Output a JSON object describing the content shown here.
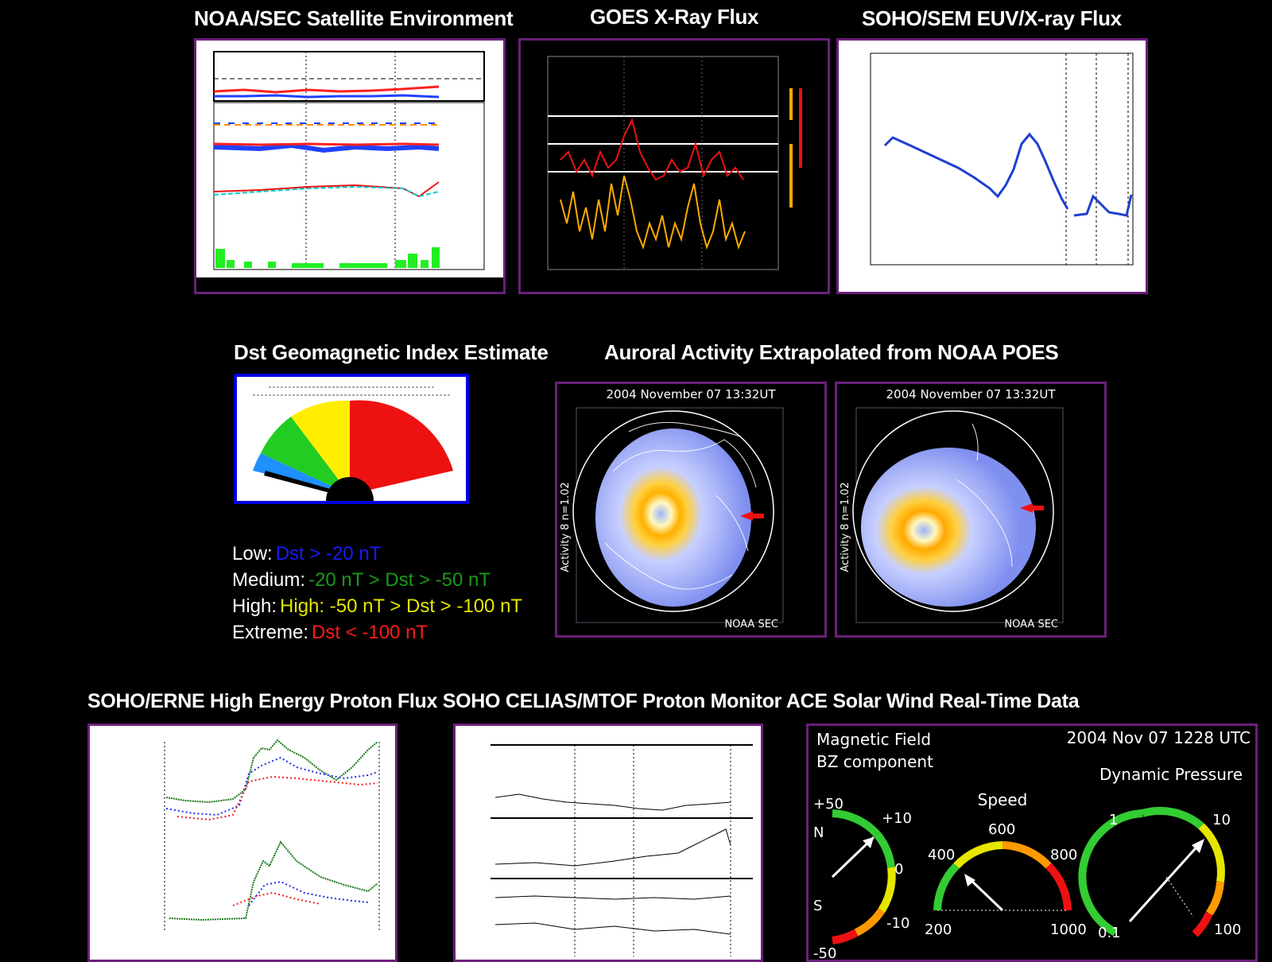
{
  "titles": {
    "sat_env": "NOAA/SEC Satellite Environment",
    "goes": "GOES X-Ray Flux",
    "sem": "SOHO/SEM EUV/X-ray Flux",
    "dst": "Dst Geomagnetic Index Estimate",
    "aurora": "Auroral Activity Extrapolated from NOAA POES",
    "bottom_row": "SOHO/ERNE High Energy Proton Flux SOHO CELIAS/MTOF Proton Monitor ACE Solar Wind Real-Time Data"
  },
  "dst_legend": [
    {
      "label": "Low:",
      "value": "Dst > -20 nT",
      "color": "#1a1aff"
    },
    {
      "label": "Medium:",
      "value": "-20 nT > Dst > -50 nT",
      "color": "#1a9a1a"
    },
    {
      "label": "High:",
      "value": "High: -50 nT > Dst > -100 nT",
      "color": "#e6e600"
    },
    {
      "label": "Extreme:",
      "value": "Dst < -100 nT",
      "color": "#ff1a1a"
    }
  ],
  "aurora": {
    "north": {
      "timestamp": "2004 November 07 13:32UT",
      "axis_label": "Activity 8  n=1.02",
      "credit": "NOAA SEC"
    },
    "south": {
      "timestamp": "2004 November 07 13:32UT",
      "axis_label": "Activity 8  n=1.02",
      "credit": "NOAA SEC"
    }
  },
  "ace": {
    "mag_title": "Magnetic Field",
    "bz_title": "BZ component",
    "timestamp": "2004 Nov 07 1228 UTC",
    "dyn_title": "Dynamic Pressure",
    "speed_title": "Speed",
    "bz_labels": {
      "top": "+50",
      "p10": "+10",
      "zero": "0",
      "m10": "-10",
      "bottom": "-50",
      "n": "N",
      "s": "S"
    },
    "speed_labels": {
      "l200": "200",
      "l400": "400",
      "l600": "600",
      "l800": "800",
      "l1000": "1000"
    },
    "dyn_labels": {
      "l01": "0.1",
      "l1": "1",
      "l10": "10",
      "l100": "100"
    },
    "colors": {
      "green": "#33cc33",
      "yellow": "#e6e600",
      "orange": "#ff9900",
      "red": "#ee1111"
    }
  },
  "colors": {
    "panel_border": "#6b1f7a",
    "dst_border": "#0000dd",
    "dst_blue": "#1e90ff",
    "dst_green": "#22cc22",
    "dst_yellow": "#ffee00",
    "dst_red": "#ee1111"
  }
}
